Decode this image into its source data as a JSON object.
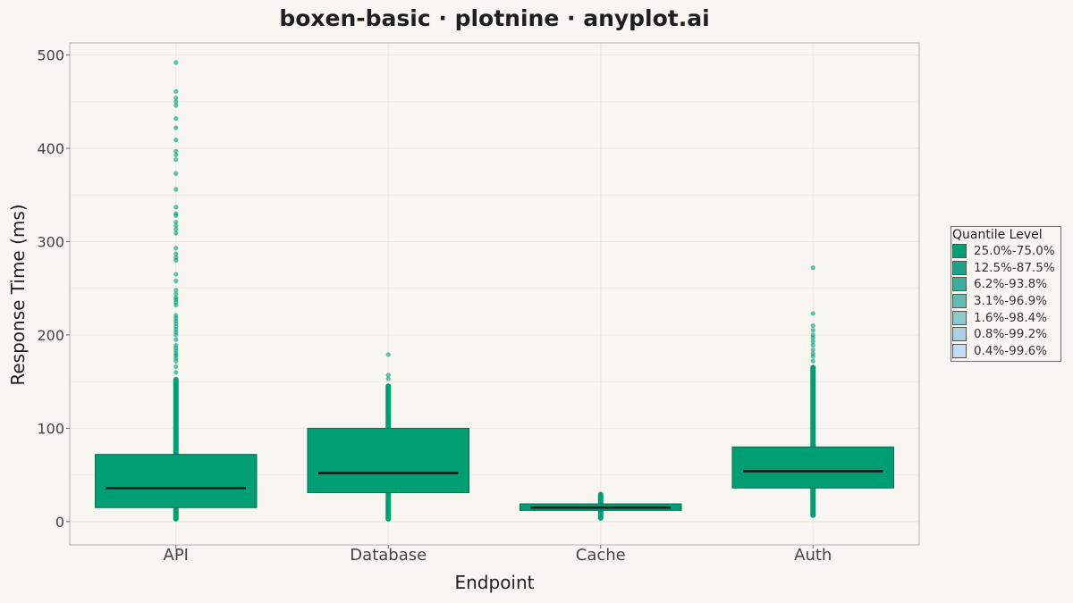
{
  "title": "boxen-basic · plotnine · anyplot.ai",
  "chart_data": {
    "type": "boxen",
    "title": "boxen-basic · plotnine · anyplot.ai",
    "xlabel": "Endpoint",
    "ylabel": "Response Time (ms)",
    "ylim": [
      -25,
      513
    ],
    "yticks": [
      0,
      100,
      200,
      300,
      400,
      500
    ],
    "grid": true,
    "legend_position": "right",
    "categories": [
      "API",
      "Database",
      "Cache",
      "Auth"
    ],
    "colors": {
      "box": "#009e73",
      "median": "#1a1a1a",
      "background": "#f8f6f1",
      "panel_border": "#b0b0b0",
      "grid": "#ece8e0"
    },
    "boxes": [
      {
        "category": "API",
        "q1": 15,
        "median": 36,
        "q3": 72,
        "whisker_low": 0,
        "whisker_high": 155,
        "outliers": [
          160,
          166,
          172,
          175,
          178,
          180,
          183,
          186,
          189,
          195,
          200,
          203,
          206,
          209,
          212,
          215,
          218,
          221,
          232,
          235,
          238,
          240,
          244,
          248,
          258,
          265,
          280,
          283,
          287,
          293,
          309,
          313,
          317,
          321,
          328,
          330,
          337,
          356,
          373,
          388,
          393,
          397,
          409,
          422,
          432,
          446,
          450,
          454,
          461,
          492
        ]
      },
      {
        "category": "Database",
        "q1": 31,
        "median": 52,
        "q3": 100,
        "whisker_low": 0,
        "whisker_high": 148,
        "outliers": [
          153,
          157,
          179
        ]
      },
      {
        "category": "Cache",
        "q1": 12,
        "median": 15,
        "q3": 19,
        "whisker_low": 1,
        "whisker_high": 32,
        "outliers": []
      },
      {
        "category": "Auth",
        "q1": 36,
        "median": 54,
        "q3": 80,
        "whisker_low": 4,
        "whisker_high": 168,
        "outliers": [
          172,
          177,
          180,
          184,
          189,
          193,
          197,
          200,
          205,
          210,
          223,
          272
        ]
      }
    ],
    "legend": {
      "title": "Quantile Level",
      "items": [
        {
          "label": "25.0%-75.0%",
          "color": "#009e73"
        },
        {
          "label": "12.5%-87.5%",
          "color": "#1aa386"
        },
        {
          "label": "6.2%-93.8%",
          "color": "#3aae98"
        },
        {
          "label": "3.1%-96.9%",
          "color": "#62bcb0"
        },
        {
          "label": "1.6%-98.4%",
          "color": "#8ccac8"
        },
        {
          "label": "0.8%-99.2%",
          "color": "#acd1e0"
        },
        {
          "label": "0.4%-99.6%",
          "color": "#c6daf2"
        }
      ]
    }
  }
}
